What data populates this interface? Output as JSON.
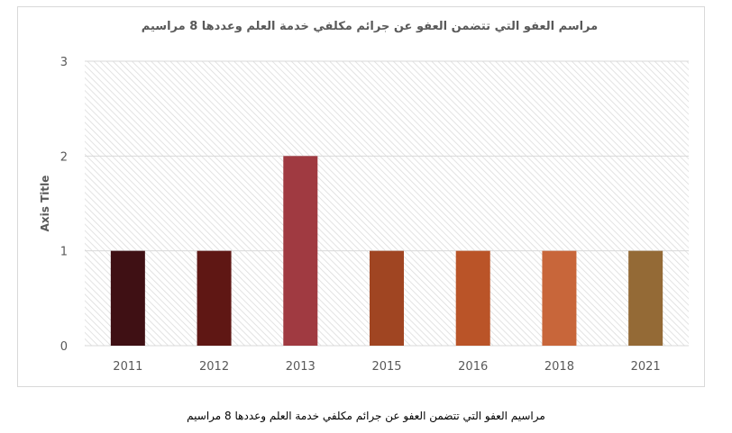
{
  "chart_data": {
    "type": "bar",
    "title": "مراسم العفو التي تتضمن العفو عن جرائم مكلفي خدمة العلم وعددها 8 مراسيم",
    "categories": [
      "2011",
      "2012",
      "2013",
      "2015",
      "2016",
      "2018",
      "2021"
    ],
    "values": [
      1,
      1,
      2,
      1,
      1,
      1,
      1
    ],
    "bar_colors": [
      "#3f1014",
      "#5f1714",
      "#a03a41",
      "#a04522",
      "#ba5428",
      "#c8663a",
      "#946a36"
    ],
    "ylabel": "Axis Title",
    "xlabel": "",
    "ylim": [
      0,
      3
    ],
    "yticks": [
      "0",
      "1",
      "2",
      "3"
    ],
    "grid": true,
    "legend": "none",
    "plot_background": "hatched-gray"
  },
  "caption": "مراسيم العفو التي تتضمن العفو عن جرائم مكلفي خدمة العلم وعددها 8 مراسيم"
}
